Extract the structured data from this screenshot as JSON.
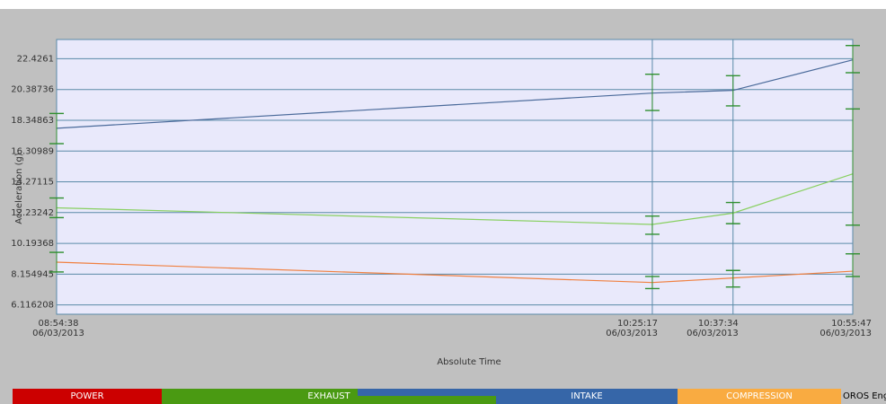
{
  "chart_data": {
    "type": "line",
    "xlabel": "Absolute Time",
    "ylabel": "Acceleration (g)",
    "x_ticks": [
      {
        "time": "08:54:38",
        "date": "06/03/2013"
      },
      {
        "time": "10:25:17",
        "date": "06/03/2013"
      },
      {
        "time": "10:37:34",
        "date": "06/03/2013"
      },
      {
        "time": "10:55:47",
        "date": "06/03/2013"
      }
    ],
    "x_seconds": [
      32078,
      37517,
      38254,
      39347
    ],
    "ylim": [
      5.5,
      23.7
    ],
    "y_ticks": [
      "22.4261",
      "20.38736",
      "18.34863",
      "16.30989",
      "14.27115",
      "12.23242",
      "10.19368",
      "8.154945",
      "6.116208"
    ],
    "grid": true,
    "series": [
      {
        "color": "#4a6a9a",
        "values": [
          17.82,
          20.15,
          20.33,
          22.35
        ],
        "error": [
          [
            16.8,
            18.8
          ],
          [
            19.0,
            21.4
          ],
          [
            19.3,
            21.3
          ],
          [
            21.5,
            23.3
          ]
        ]
      },
      {
        "color": "#88d060",
        "values": [
          12.55,
          11.45,
          12.2,
          14.8
        ],
        "error": [
          [
            11.9,
            13.2
          ],
          [
            10.8,
            12.0
          ],
          [
            11.5,
            12.9
          ],
          [
            11.4,
            19.1
          ]
        ]
      },
      {
        "color": "#f08040",
        "values": [
          8.95,
          7.6,
          7.9,
          8.35
        ],
        "error": [
          [
            8.3,
            9.6
          ],
          [
            7.2,
            8.0
          ],
          [
            7.3,
            8.4
          ],
          [
            8.0,
            9.5
          ]
        ]
      }
    ]
  },
  "phases": [
    {
      "label": "POWER",
      "color": "#cc0000"
    },
    {
      "label": "EXHAUST",
      "color": "#4a9a12"
    },
    {
      "label": "",
      "color": "#3666a8"
    },
    {
      "label": "INTAKE",
      "color": "#3666a8"
    },
    {
      "label": "COMPRESSION",
      "color": "#f9ab41"
    }
  ],
  "engine_label": "OROS Engi"
}
